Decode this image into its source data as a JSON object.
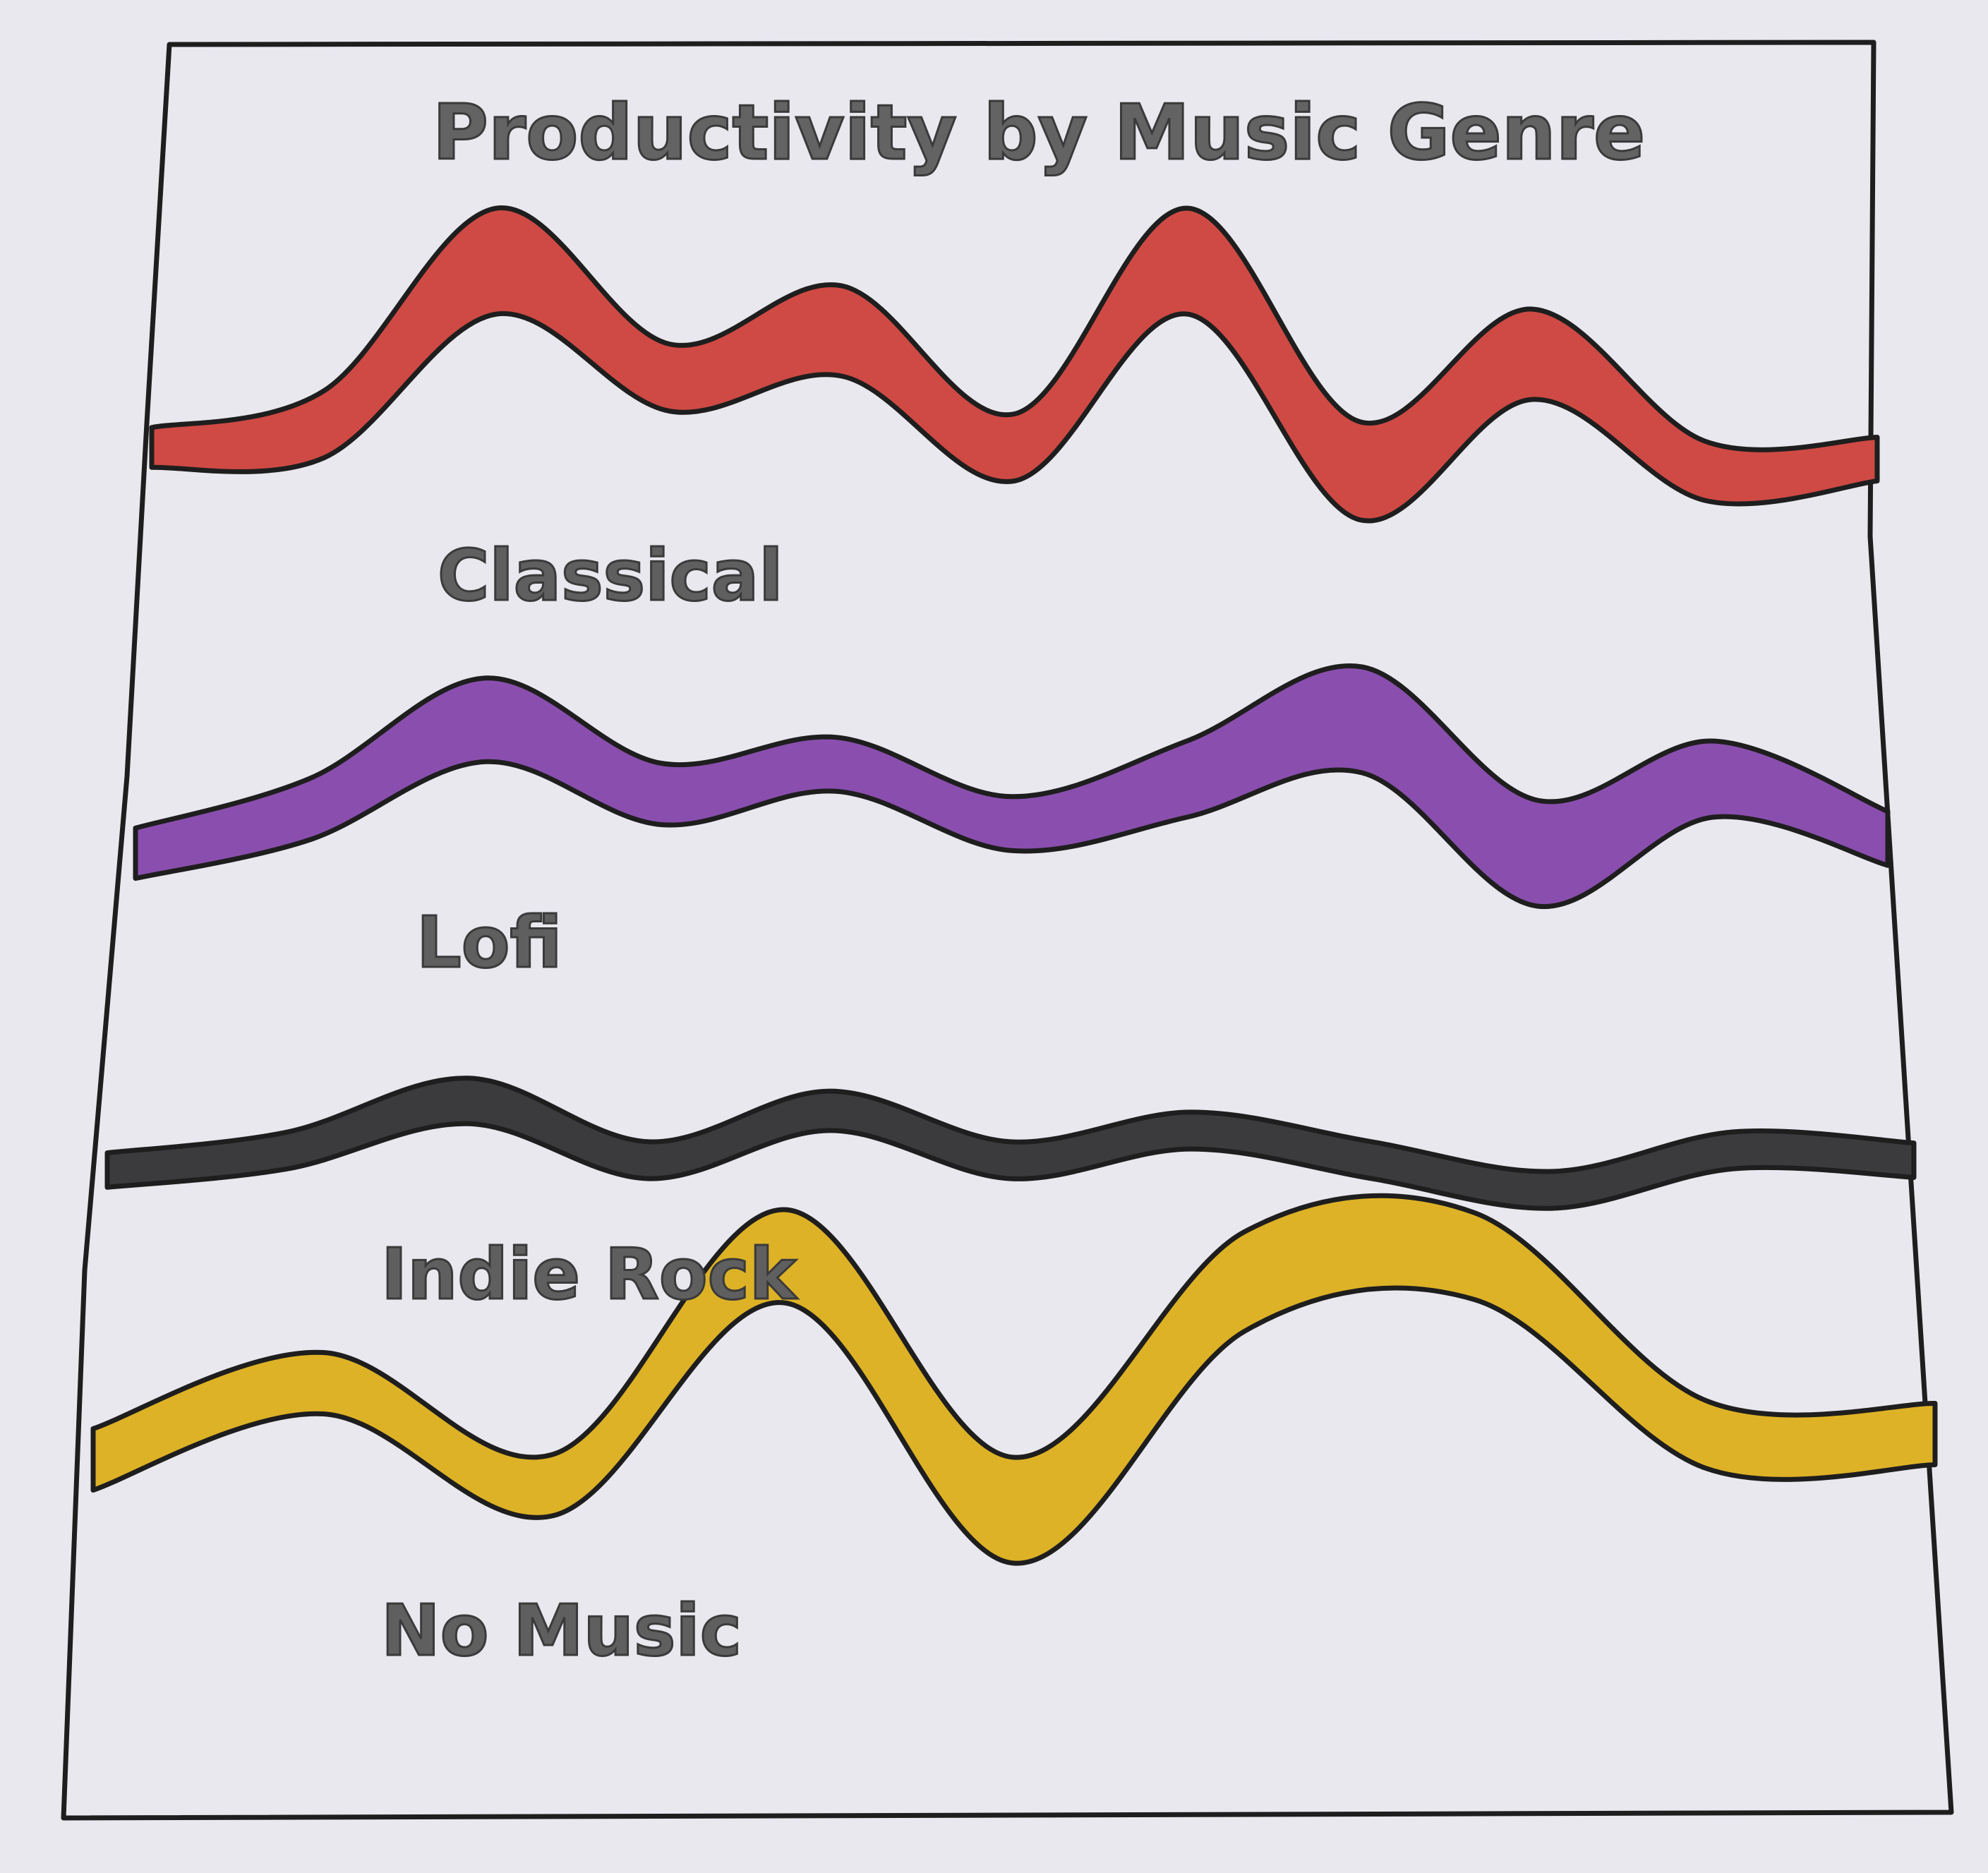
{
  "chart_data": {
    "type": "area",
    "title": "Productivity by Music Genre",
    "xlabel": "",
    "ylabel": "",
    "grid": false,
    "legend": "none",
    "series": [
      {
        "name": "Classical",
        "color": "#cf4a44",
        "values": [
          0.2,
          0.3,
          1.0,
          0.5,
          0.7,
          0.2,
          1.0,
          0.1,
          0.6,
          0.1,
          0.15
        ],
        "widths": [
          0.15,
          0.5,
          1.0,
          0.5,
          0.8,
          0.5,
          1.0,
          0.9,
          0.8,
          0.4,
          0.2
        ]
      },
      {
        "name": "Lofi",
        "color": "#8a4fae",
        "values": [
          0.1,
          0.4,
          1.0,
          0.5,
          0.7,
          0.3,
          0.6,
          1.0,
          0.1,
          0.6,
          0.2
        ],
        "widths": [
          0.25,
          0.4,
          0.7,
          0.4,
          0.3,
          0.3,
          0.6,
          1.0,
          1.0,
          0.6,
          0.3
        ]
      },
      {
        "name": "Indie Rock",
        "color": "#3b3b3d",
        "values": [
          0.3,
          0.5,
          1.0,
          0.4,
          0.9,
          0.4,
          0.7,
          0.4,
          0.1,
          0.5,
          0.4
        ],
        "widths": [
          0.25,
          0.35,
          0.7,
          0.35,
          0.45,
          0.35,
          0.35,
          0.35,
          0.35,
          0.35,
          0.25
        ]
      },
      {
        "name": "No Music",
        "color": "#deb226",
        "values": [
          0.2,
          0.5,
          0.1,
          1.0,
          0.0,
          0.9,
          1.0,
          0.3,
          0.3
        ],
        "widths": [
          0.3,
          0.3,
          0.3,
          0.8,
          1.0,
          0.9,
          0.7,
          0.4,
          0.3
        ]
      }
    ]
  }
}
